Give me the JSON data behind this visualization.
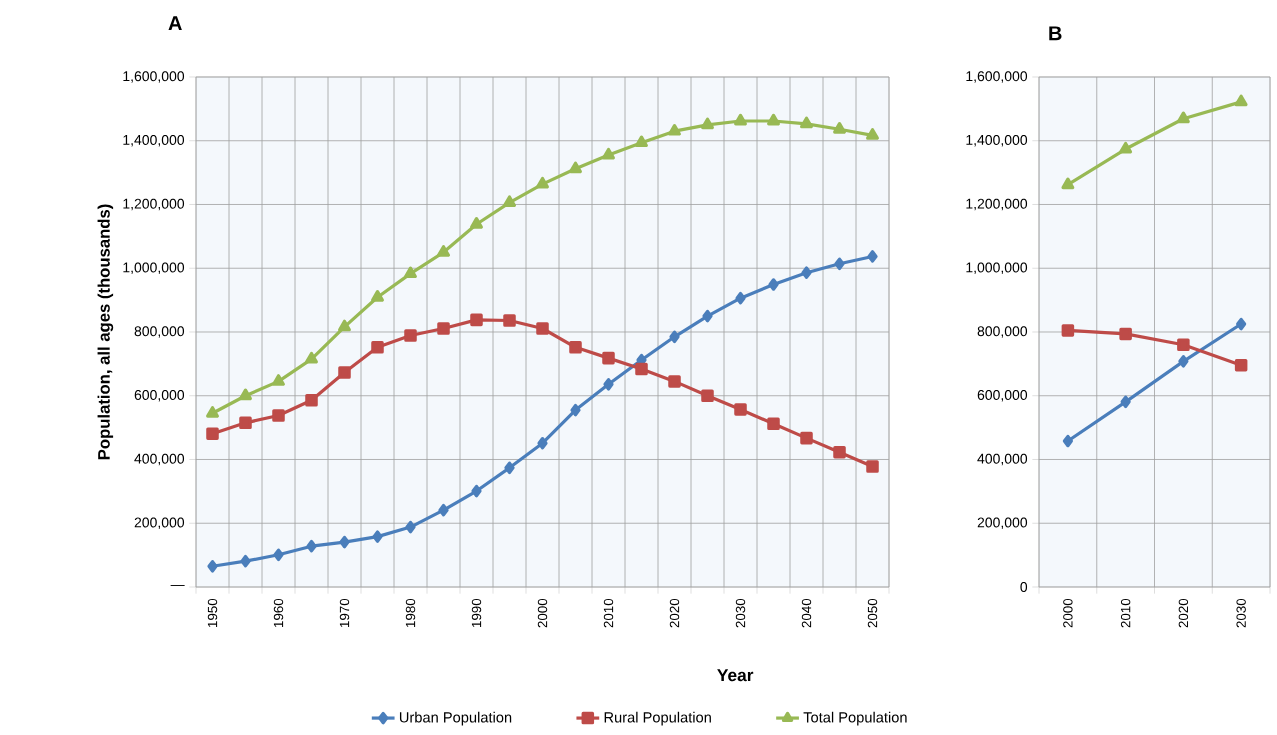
{
  "chart_data": [
    {
      "type": "line",
      "title": "A",
      "xlabel": "Year",
      "ylabel": "Population, all ages (thousands)",
      "categories": [
        "1950",
        null,
        "1960",
        null,
        "1970",
        null,
        "1980",
        null,
        "1990",
        null,
        "2000",
        null,
        "2010",
        null,
        "2020",
        null,
        "2030",
        null,
        "2040",
        null,
        "2050"
      ],
      "ylim": [
        0,
        1600000
      ],
      "yticks": [
        {
          "value": 0,
          "label": "—"
        },
        {
          "value": 200000,
          "label": "200,000"
        },
        {
          "value": 400000,
          "label": "400,000"
        },
        {
          "value": 600000,
          "label": "600,000"
        },
        {
          "value": 800000,
          "label": "800,000"
        },
        {
          "value": 1000000,
          "label": "1,000,000"
        },
        {
          "value": 1200000,
          "label": "1,200,000"
        },
        {
          "value": 1400000,
          "label": "1,400,000"
        },
        {
          "value": 1600000,
          "label": "1,600,000"
        }
      ],
      "grid": true,
      "legend": "bottom",
      "line_style": "solid",
      "series": [
        {
          "name": "Urban Population",
          "color": "#4a7ebb",
          "marker": "diamond",
          "values": [
            65000,
            81000,
            101000,
            128000,
            141000,
            158000,
            188000,
            241000,
            301000,
            374000,
            451000,
            555000,
            636000,
            712000,
            785000,
            850000,
            906000,
            949000,
            986000,
            1014000,
            1037000
          ]
        },
        {
          "name": "Rural Population",
          "color": "#be4b48",
          "marker": "square",
          "values": [
            481000,
            515000,
            538000,
            586000,
            673000,
            752000,
            789000,
            811000,
            838000,
            836000,
            811000,
            752000,
            718000,
            684000,
            645000,
            600000,
            557000,
            512000,
            467000,
            423000,
            378000
          ]
        },
        {
          "name": "Total Population",
          "color": "#98b954",
          "marker": "triangle",
          "values": [
            545000,
            600000,
            645000,
            715000,
            816000,
            909000,
            983000,
            1050000,
            1138000,
            1206000,
            1264000,
            1312000,
            1355000,
            1394000,
            1430000,
            1450000,
            1462000,
            1462000,
            1453000,
            1436000,
            1417000
          ]
        }
      ]
    },
    {
      "type": "line",
      "title": "B",
      "categories": [
        "2000",
        "2010",
        "2020",
        "2030"
      ],
      "ylim": [
        0,
        1600000
      ],
      "yticks": [
        0,
        {
          "value": 200000,
          "label": "200,000"
        },
        {
          "value": 400000,
          "label": "400,000"
        },
        {
          "value": 600000,
          "label": "600,000"
        },
        {
          "value": 800000,
          "label": "800,000"
        },
        {
          "value": 1000000,
          "label": "1,000,000"
        },
        {
          "value": 1200000,
          "label": "1,200,000"
        },
        {
          "value": 1400000,
          "label": "1,400,000"
        },
        {
          "value": 1600000,
          "label": "1,600,000"
        }
      ],
      "grid": true,
      "line_style": "solid",
      "series": [
        {
          "color": "#4a7ebb",
          "marker": "diamond",
          "values": [
            458000,
            581000,
            708000,
            825000
          ]
        },
        {
          "color": "#be4b48",
          "marker": "square",
          "values": [
            805000,
            794000,
            760000,
            696000
          ]
        },
        {
          "color": "#98b954",
          "marker": "triangle",
          "values": [
            1262000,
            1374000,
            1469000,
            1522000
          ]
        }
      ]
    }
  ]
}
